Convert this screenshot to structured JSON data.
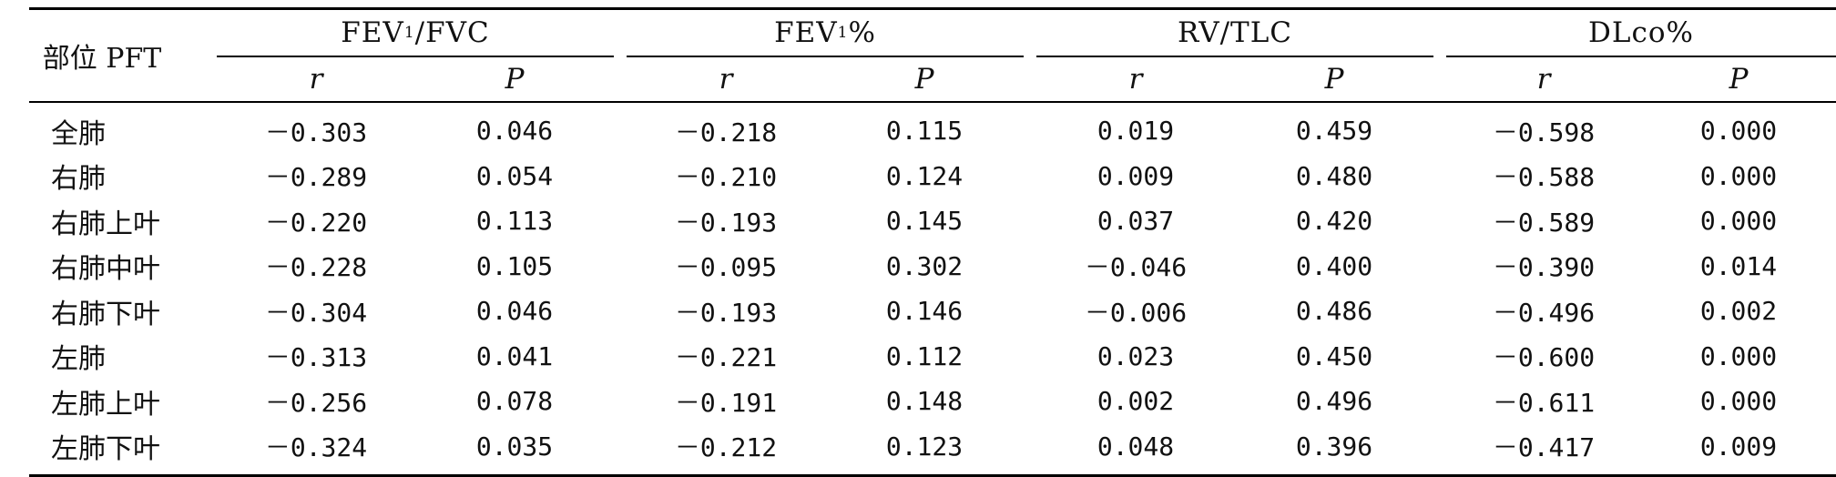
{
  "table": {
    "stub_header": "部位 PFT",
    "groups": [
      {
        "title_prefix": "FEV",
        "title_sub": "1",
        "title_suffix": "/FVC",
        "sub_headers": [
          "r",
          "P"
        ]
      },
      {
        "title_prefix": "FEV",
        "title_sub": "1",
        "title_suffix": "%",
        "sub_headers": [
          "r",
          "P"
        ]
      },
      {
        "title_prefix": "RV/TLC",
        "title_sub": "",
        "title_suffix": "",
        "sub_headers": [
          "r",
          "P"
        ]
      },
      {
        "title_prefix": "DLco%",
        "title_sub": "",
        "title_suffix": "",
        "sub_headers": [
          "r",
          "P"
        ]
      }
    ],
    "rows": [
      {
        "label": "全肺",
        "values": [
          "－0.303",
          "0.046",
          "－0.218",
          "0.115",
          "0.019",
          "0.459",
          "－0.598",
          "0.000"
        ]
      },
      {
        "label": "右肺",
        "values": [
          "－0.289",
          "0.054",
          "－0.210",
          "0.124",
          "0.009",
          "0.480",
          "－0.588",
          "0.000"
        ]
      },
      {
        "label": "右肺上叶",
        "values": [
          "－0.220",
          "0.113",
          "－0.193",
          "0.145",
          "0.037",
          "0.420",
          "－0.589",
          "0.000"
        ]
      },
      {
        "label": "右肺中叶",
        "values": [
          "－0.228",
          "0.105",
          "－0.095",
          "0.302",
          "－0.046",
          "0.400",
          "－0.390",
          "0.014"
        ]
      },
      {
        "label": "右肺下叶",
        "values": [
          "－0.304",
          "0.046",
          "－0.193",
          "0.146",
          "－0.006",
          "0.486",
          "－0.496",
          "0.002"
        ]
      },
      {
        "label": "左肺",
        "values": [
          "－0.313",
          "0.041",
          "－0.221",
          "0.112",
          "0.023",
          "0.450",
          "－0.600",
          "0.000"
        ]
      },
      {
        "label": "左肺上叶",
        "values": [
          "－0.256",
          "0.078",
          "－0.191",
          "0.148",
          "0.002",
          "0.496",
          "－0.611",
          "0.000"
        ]
      },
      {
        "label": "左肺下叶",
        "values": [
          "－0.324",
          "0.035",
          "－0.212",
          "0.123",
          "0.048",
          "0.396",
          "－0.417",
          "0.009"
        ]
      }
    ]
  }
}
